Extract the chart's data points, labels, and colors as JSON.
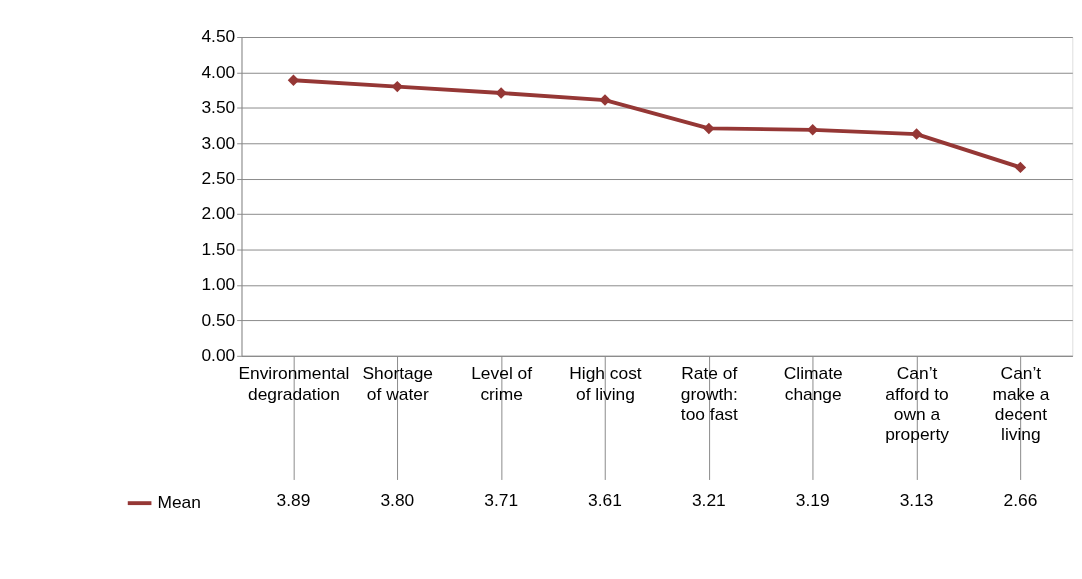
{
  "chart_data": {
    "type": "line",
    "categories": [
      "Environmental degradation",
      "Shortage of water",
      "Level of crime",
      "High cost of living",
      "Rate of growth: too fast",
      "Climate change",
      "Can’t afford to own a property",
      "Can’t make a decent living"
    ],
    "series": [
      {
        "name": "Mean",
        "color": "#953735",
        "values": [
          3.89,
          3.8,
          3.71,
          3.61,
          3.21,
          3.19,
          3.13,
          2.66
        ],
        "value_labels": [
          "3.89",
          "3.80",
          "3.71",
          "3.61",
          "3.21",
          "3.19",
          "3.13",
          "2.66"
        ]
      }
    ],
    "ylim": [
      0,
      4.5
    ],
    "yticks": [
      {
        "value": 0,
        "label": "0.00"
      },
      {
        "value": 0.5,
        "label": "0.50"
      },
      {
        "value": 1,
        "label": "1.00"
      },
      {
        "value": 1.5,
        "label": "1.50"
      },
      {
        "value": 2,
        "label": "2.00"
      },
      {
        "value": 2.5,
        "label": "2.50"
      },
      {
        "value": 3,
        "label": "3.00"
      },
      {
        "value": 3.5,
        "label": "3.50"
      },
      {
        "value": 4,
        "label": "4.00"
      },
      {
        "value": 4.5,
        "label": "4.50"
      }
    ],
    "grid": "y",
    "legend": "bottom left",
    "marker": "diamond",
    "line_style": "solid"
  }
}
